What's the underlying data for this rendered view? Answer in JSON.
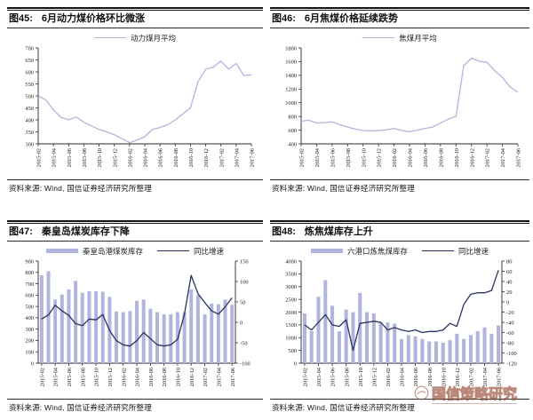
{
  "page": {
    "background": "#ffffff"
  },
  "colors": {
    "series_light": "#b1b5dd",
    "series_dark": "#27335f",
    "axis": "#2a2a2a",
    "watermark": "#94483444"
  },
  "watermark": {
    "text": "国信策略研究",
    "logo": "guosen-circle-logo"
  },
  "panels": [
    {
      "fig": "图45:",
      "title": "6月动力煤价格环比微涨",
      "legend": [
        {
          "marker": "line-light",
          "label": "动力煤月平均"
        }
      ],
      "source": "资料来源: Wind, 国信证券经济研究所整理"
    },
    {
      "fig": "图46:",
      "title": "6月焦煤价格延续跌势",
      "legend": [
        {
          "marker": "line-light",
          "label": "焦煤月平均"
        }
      ],
      "source": "资料来源: Wind, 国信证券经济研究所整理"
    },
    {
      "fig": "图47:",
      "title": "秦皇岛煤炭库存下降",
      "legend": [
        {
          "marker": "bar-light",
          "label": "秦皇岛港煤炭库存"
        },
        {
          "marker": "line-dark",
          "label": "同比增速"
        }
      ],
      "source": "资料来源: Wind, 国信证券经济研究所整理"
    },
    {
      "fig": "图48:",
      "title": "炼焦煤库存上升",
      "legend": [
        {
          "marker": "bar-light",
          "label": "六港口炼焦煤库存"
        },
        {
          "marker": "line-dark",
          "label": "同比增速"
        }
      ],
      "source": "资料来源: Wind, 国信证券经济研究所整理"
    }
  ],
  "chart_data": [
    {
      "type": "line",
      "title": "6月动力煤价格环比微涨",
      "xlabel": "",
      "ylabel": "",
      "grid": false,
      "legend_position": "top",
      "ylim": [
        300,
        700
      ],
      "ytick_step": 50,
      "x_tick_step": 2,
      "x": [
        "2015-02",
        "2015-03",
        "2015-04",
        "2015-05",
        "2015-06",
        "2015-07",
        "2015-08",
        "2015-09",
        "2015-10",
        "2015-11",
        "2015-12",
        "2016-01",
        "2016-02",
        "2016-03",
        "2016-04",
        "2016-05",
        "2016-06",
        "2016-07",
        "2016-08",
        "2016-09",
        "2016-10",
        "2016-11",
        "2016-12",
        "2017-01",
        "2017-02",
        "2017-03",
        "2017-04",
        "2017-05",
        "2017-06"
      ],
      "series": [
        {
          "name": "动力煤月平均",
          "kind": "line",
          "axis": "left",
          "values": [
            500,
            483,
            442,
            410,
            400,
            412,
            390,
            375,
            360,
            350,
            338,
            322,
            305,
            316,
            330,
            360,
            368,
            380,
            400,
            425,
            450,
            560,
            612,
            620,
            645,
            612,
            635,
            585,
            588
          ]
        }
      ]
    },
    {
      "type": "line",
      "title": "6月焦煤价格延续跌势",
      "xlabel": "",
      "ylabel": "",
      "grid": false,
      "legend_position": "top",
      "ylim": [
        400,
        1800
      ],
      "ytick_step": 200,
      "x_tick_step": 2,
      "x": [
        "2015-02",
        "2015-03",
        "2015-04",
        "2015-05",
        "2015-06",
        "2015-07",
        "2015-08",
        "2015-09",
        "2015-10",
        "2015-11",
        "2015-12",
        "2016-01",
        "2016-02",
        "2016-03",
        "2016-04",
        "2016-05",
        "2016-06",
        "2016-07",
        "2016-08",
        "2016-09",
        "2016-10",
        "2016-11",
        "2016-12",
        "2017-01",
        "2017-02",
        "2017-03",
        "2017-04",
        "2017-05",
        "2017-06"
      ],
      "series": [
        {
          "name": "焦煤月平均",
          "kind": "line",
          "axis": "left",
          "values": [
            730,
            745,
            705,
            710,
            720,
            680,
            645,
            615,
            595,
            590,
            595,
            605,
            625,
            595,
            578,
            600,
            625,
            645,
            705,
            760,
            800,
            1540,
            1650,
            1605,
            1590,
            1470,
            1370,
            1230,
            1150
          ]
        }
      ]
    },
    {
      "type": "bar+line",
      "title": "秦皇岛煤炭库存下降",
      "xlabel": "",
      "ylabel": "",
      "grid": false,
      "legend_position": "top",
      "ylim_left": [
        0,
        900
      ],
      "ytick_left": 100,
      "ylim_right": [
        -100,
        150
      ],
      "ytick_right": 50,
      "x_tick_step": 2,
      "x": [
        "2015-02",
        "2015-03",
        "2015-04",
        "2015-05",
        "2015-06",
        "2015-07",
        "2015-08",
        "2015-09",
        "2015-10",
        "2015-11",
        "2015-12",
        "2016-01",
        "2016-02",
        "2016-03",
        "2016-04",
        "2016-05",
        "2016-06",
        "2016-07",
        "2016-08",
        "2016-09",
        "2016-10",
        "2016-11",
        "2016-12",
        "2017-01",
        "2017-02",
        "2017-03",
        "2017-04",
        "2017-05",
        "2017-06"
      ],
      "series": [
        {
          "name": "秦皇岛港煤炭库存",
          "kind": "bar",
          "axis": "left",
          "values": [
            775,
            810,
            560,
            605,
            650,
            725,
            620,
            635,
            635,
            630,
            585,
            455,
            450,
            460,
            550,
            560,
            480,
            450,
            430,
            430,
            450,
            450,
            650,
            600,
            430,
            525,
            520,
            560,
            515
          ]
        },
        {
          "name": "同比增速",
          "kind": "line",
          "axis": "right",
          "values": [
            8,
            18,
            42,
            28,
            17,
            -3,
            -8,
            8,
            6,
            19,
            -20,
            -45,
            -55,
            -58,
            -45,
            -25,
            -40,
            -55,
            -58,
            -55,
            -42,
            20,
            115,
            70,
            48,
            28,
            20,
            38,
            60
          ]
        }
      ]
    },
    {
      "type": "bar+line",
      "title": "炼焦煤库存上升",
      "xlabel": "",
      "ylabel": "",
      "grid": false,
      "legend_position": "top",
      "ylim_left": [
        0,
        4000
      ],
      "ytick_left": 500,
      "ylim_right": [
        -120,
        80
      ],
      "ytick_right": 20,
      "x_tick_step": 2,
      "x": [
        "2015-02",
        "2015-03",
        "2015-04",
        "2015-05",
        "2015-06",
        "2015-07",
        "2015-08",
        "2015-09",
        "2015-10",
        "2015-11",
        "2015-12",
        "2016-01",
        "2016-02",
        "2016-03",
        "2016-04",
        "2016-05",
        "2016-06",
        "2016-07",
        "2016-08",
        "2016-09",
        "2016-10",
        "2016-11",
        "2016-12",
        "2017-01",
        "2017-02",
        "2017-03",
        "2017-04",
        "2017-05",
        "2017-06"
      ],
      "series": [
        {
          "name": "六港口炼焦煤库存",
          "kind": "bar",
          "axis": "left",
          "values": [
            1950,
            1250,
            2600,
            3250,
            2250,
            1250,
            2100,
            2000,
            2750,
            2000,
            1950,
            1600,
            1600,
            1550,
            950,
            1100,
            1050,
            950,
            850,
            850,
            800,
            900,
            1150,
            950,
            1100,
            1250,
            1400,
            1150,
            1480
          ]
        },
        {
          "name": "同比增速",
          "kind": "line",
          "axis": "right",
          "values": [
            -45,
            -55,
            -40,
            -25,
            -45,
            -48,
            -35,
            -95,
            -42,
            -40,
            -38,
            -40,
            -55,
            -50,
            -55,
            -58,
            -55,
            -60,
            -58,
            -58,
            -55,
            -42,
            -48,
            -5,
            15,
            18,
            18,
            22,
            62
          ]
        }
      ]
    }
  ]
}
